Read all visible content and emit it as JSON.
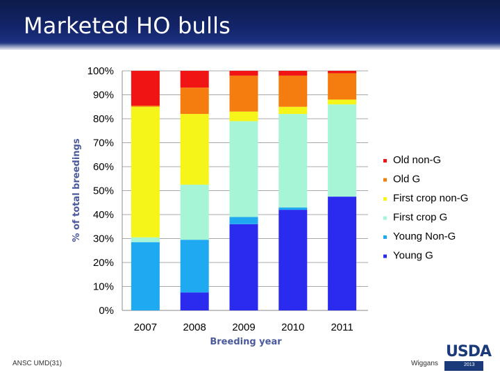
{
  "header": {
    "title": "Marketed HO bulls"
  },
  "footer": {
    "left": "ANSC UMD(31)",
    "right": "Wiggans"
  },
  "logo": {
    "text": "USDA",
    "year": "2013"
  },
  "colors": {
    "Young G": "#2b2bf0",
    "Young Non-G": "#1fa9f0",
    "First crop G": "#a6f5d6",
    "First crop non-G": "#f5f51a",
    "Old G": "#f57d0f",
    "Old non-G": "#f01414"
  },
  "chart_data": {
    "type": "bar",
    "stacked": true,
    "categories": [
      "2007",
      "2008",
      "2009",
      "2010",
      "2011"
    ],
    "series": [
      {
        "name": "Young G",
        "values": [
          0,
          7.5,
          36,
          42,
          47.5
        ]
      },
      {
        "name": "Young Non-G",
        "values": [
          28.5,
          22,
          3,
          1,
          0
        ]
      },
      {
        "name": "First crop G",
        "values": [
          2,
          23,
          40,
          39,
          38.5
        ]
      },
      {
        "name": "First crop non-G",
        "values": [
          54.5,
          29.5,
          4,
          3,
          2
        ]
      },
      {
        "name": "Old G",
        "values": [
          0.5,
          11,
          15,
          13,
          11
        ]
      },
      {
        "name": "Old non-G",
        "values": [
          14.5,
          7,
          2,
          2,
          1
        ]
      }
    ],
    "legend_order": [
      "Old non-G",
      "Old G",
      "First crop non-G",
      "First crop G",
      "Young Non-G",
      "Young G"
    ],
    "ylabel": "% of total breedings",
    "xlabel": "Breeding year",
    "ylim": [
      0,
      100
    ],
    "yticks": [
      "0%",
      "10%",
      "20%",
      "30%",
      "40%",
      "50%",
      "60%",
      "70%",
      "80%",
      "90%",
      "100%"
    ],
    "grid": true,
    "legend_position": "right"
  }
}
